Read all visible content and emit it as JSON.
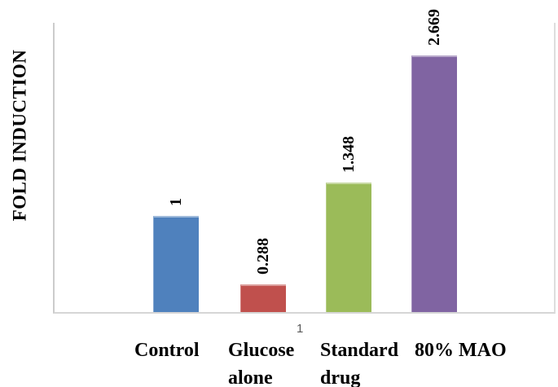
{
  "chart_data": {
    "type": "bar",
    "title": "",
    "xlabel": "",
    "ylabel": "FOLD INDUCTION",
    "categories": [
      "Control",
      "Glucose alone",
      "Standard drug",
      "80% MAO"
    ],
    "category_display": [
      "Control",
      "Glucose\nalone",
      "Standard\ndrug",
      "80% MAO"
    ],
    "values": [
      1,
      0.288,
      1.348,
      2.669
    ],
    "data_labels": [
      "1",
      "0.288",
      "1.348",
      "2.669"
    ],
    "data_label_rotation_deg": -90,
    "bar_colors": [
      "#4f81bd",
      "#c0504d",
      "#9bbb59",
      "#8064a2"
    ],
    "axis_color": "#d6d6d6",
    "ylim": [
      0,
      3
    ],
    "grid": false,
    "legend": "none",
    "footnote_marker": "1"
  }
}
